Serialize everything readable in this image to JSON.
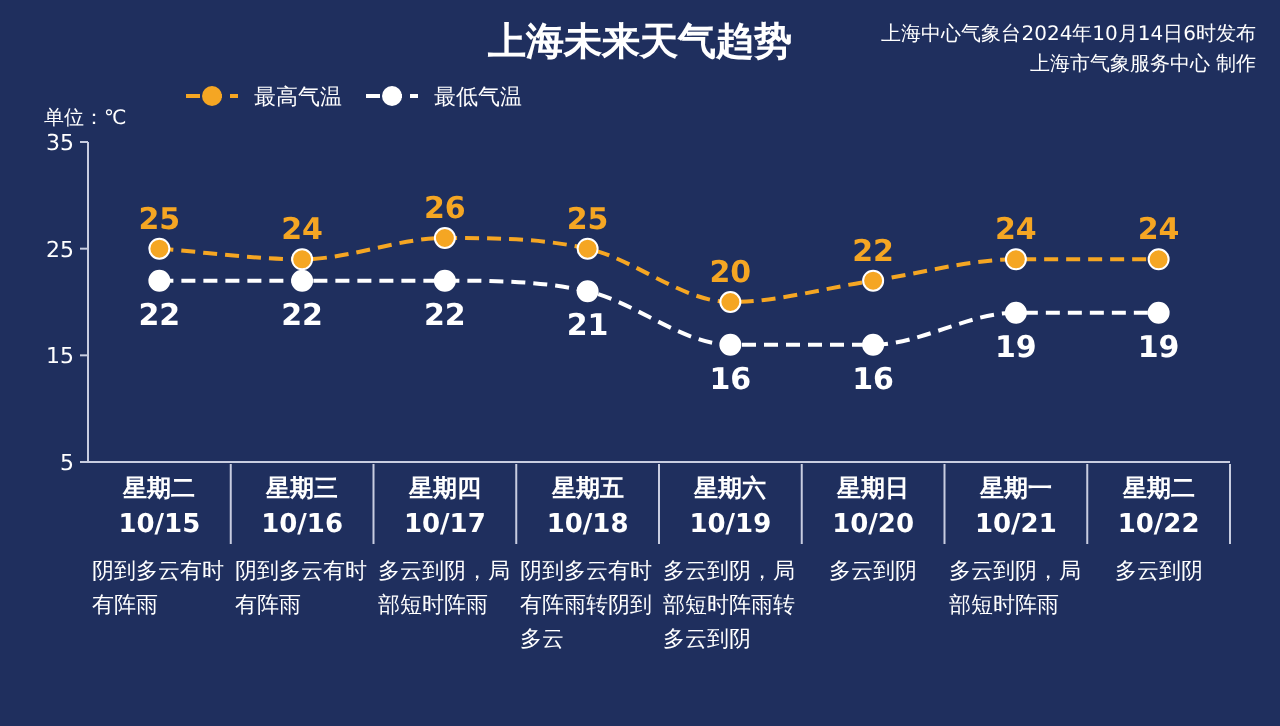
{
  "chart_data": {
    "type": "line",
    "title": "上海未来天气趋势",
    "ylabel": "单位：℃",
    "categories": [
      "星期二\n10/15",
      "星期三\n10/16",
      "星期四\n10/17",
      "星期五\n10/18",
      "星期六\n10/19",
      "星期日\n10/20",
      "星期一\n10/21",
      "星期二\n10/22"
    ],
    "series": [
      {
        "name": "最高气温",
        "color": "#f5a623",
        "values": [
          25,
          24,
          26,
          25,
          20,
          22,
          24,
          24
        ]
      },
      {
        "name": "最低气温",
        "color": "#ffffff",
        "values": [
          22,
          22,
          22,
          21,
          16,
          16,
          19,
          19
        ]
      }
    ],
    "ylim": [
      5,
      35
    ],
    "yticks": [
      5,
      15,
      25,
      35
    ],
    "grid": false,
    "legend": "top",
    "marker": "circle",
    "line_style": "dashed",
    "data_labels": true,
    "annotations": [
      "上海中心气象台2024年10月14日6时发布",
      "上海市气象服务中心 制作",
      "阴到多云有时有阵雨",
      "阴到多云有时有阵雨",
      "多云到阴，局部短时阵雨",
      "阴到多云有时有阵雨转阴到多云",
      "多云到阴，局部短时阵雨转多云到阴",
      "多云到阴",
      "多云到阴，局部短时阵雨",
      "多云到阴"
    ]
  }
}
